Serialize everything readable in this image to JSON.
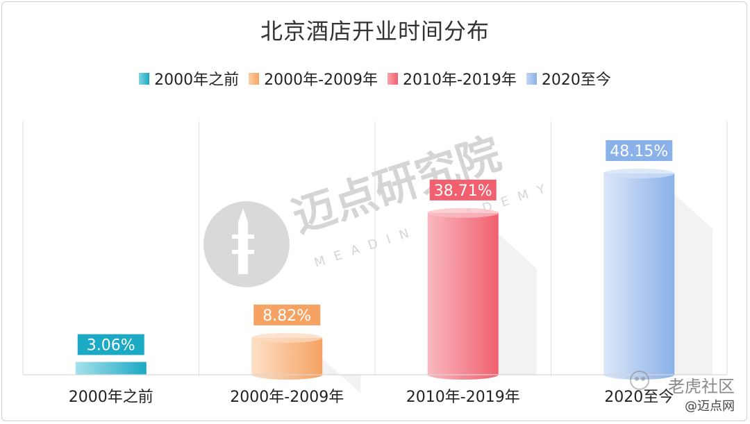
{
  "title": "北京酒店开业时间分布",
  "chart_data": {
    "type": "bar",
    "categories": [
      "2000年之前",
      "2000年-2009年",
      "2010年-2019年",
      "2020至今"
    ],
    "values": [
      3.06,
      8.82,
      38.71,
      48.15
    ],
    "labels": [
      "3.06%",
      "8.82%",
      "38.71%",
      "48.15%"
    ],
    "legend": [
      "2000年之前",
      "2000年-2009年",
      "2010年-2019年",
      "2020至今"
    ],
    "legend_position": "top",
    "colors": [
      "#1ba9c4",
      "#f5a262",
      "#f0606f",
      "#8ab1e8"
    ],
    "grid": "vertical"
  },
  "watermarks": {
    "center": "迈点研究院",
    "center_sub": "MEADIN ACADEMY",
    "corner_top": "老虎社区",
    "corner_bottom": "@迈点网"
  }
}
